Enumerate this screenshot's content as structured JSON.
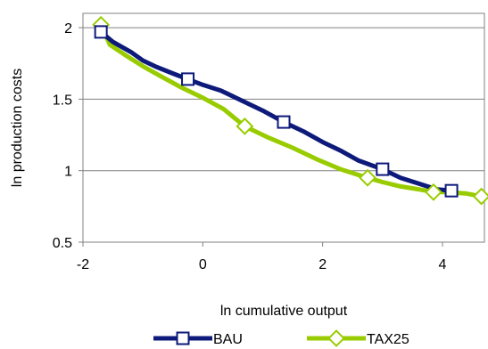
{
  "chart_data": {
    "type": "line",
    "xlabel": "ln cumulative output",
    "ylabel": "ln production costs",
    "xlim": [
      -2,
      4.7
    ],
    "ylim": [
      0.5,
      2.1
    ],
    "x_ticks": [
      {
        "value": -2,
        "label": "-2"
      },
      {
        "value": 0,
        "label": "0"
      },
      {
        "value": 2,
        "label": "2"
      },
      {
        "value": 4,
        "label": "4"
      }
    ],
    "y_ticks": [
      {
        "value": 0.5,
        "label": "0.5"
      },
      {
        "value": 1,
        "label": "1"
      },
      {
        "value": 1.5,
        "label": "1.5"
      },
      {
        "value": 2,
        "label": "2"
      }
    ],
    "grid": "horizontal",
    "legend_position": "bottom",
    "series": [
      {
        "name": "BAU",
        "color": "#0d1a7a",
        "marker": "square",
        "x": [
          -1.7,
          -1.5,
          -1.2,
          -1.0,
          -0.8,
          -0.5,
          -0.25,
          0.0,
          0.3,
          0.6,
          1.0,
          1.35,
          1.7,
          2.0,
          2.3,
          2.6,
          3.0,
          3.3,
          3.6,
          3.9,
          4.15
        ],
        "y": [
          1.97,
          1.9,
          1.83,
          1.77,
          1.73,
          1.68,
          1.64,
          1.6,
          1.56,
          1.5,
          1.42,
          1.34,
          1.27,
          1.2,
          1.14,
          1.07,
          1.01,
          0.95,
          0.91,
          0.87,
          0.86
        ],
        "marker_x": [
          -1.7,
          -0.25,
          1.35,
          3.0,
          4.15
        ],
        "marker_y": [
          1.97,
          1.64,
          1.34,
          1.01,
          0.86
        ]
      },
      {
        "name": "TAX25",
        "color": "#99cc00",
        "marker": "diamond",
        "x": [
          -1.7,
          -1.55,
          -1.3,
          -1.0,
          -0.7,
          -0.35,
          0.0,
          0.35,
          0.7,
          1.1,
          1.5,
          1.9,
          2.3,
          2.75,
          3.0,
          3.3,
          3.6,
          3.85,
          4.1,
          4.4,
          4.65
        ],
        "y": [
          2.02,
          1.88,
          1.81,
          1.73,
          1.66,
          1.58,
          1.51,
          1.43,
          1.31,
          1.23,
          1.16,
          1.08,
          1.01,
          0.95,
          0.92,
          0.89,
          0.87,
          0.85,
          0.85,
          0.84,
          0.82
        ],
        "marker_x": [
          -1.7,
          0.7,
          2.75,
          3.85,
          4.65
        ],
        "marker_y": [
          2.02,
          1.31,
          0.95,
          0.85,
          0.82
        ]
      }
    ]
  }
}
